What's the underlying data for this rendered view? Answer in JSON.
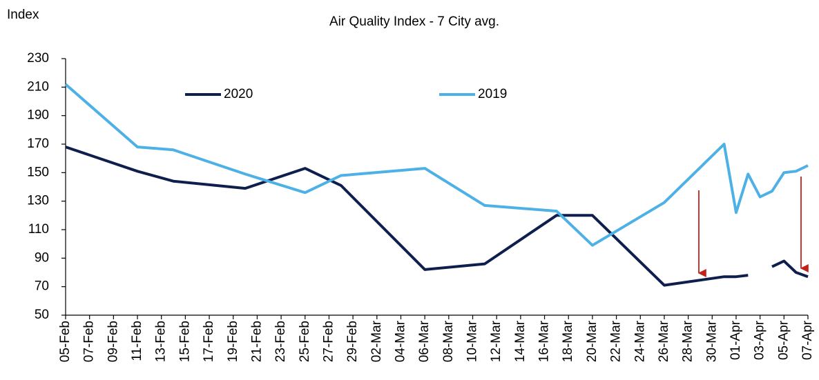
{
  "chart_data": {
    "type": "line",
    "title": "Air Quality  Index - 7 City avg.",
    "ylabel": "Index",
    "x": [
      "05-Feb",
      "11-Feb",
      "14-Feb",
      "20-Feb",
      "25-Feb",
      "28-Feb",
      "06-Mar",
      "11-Mar",
      "17-Mar",
      "20-Mar",
      "26-Mar",
      "31-Mar",
      "01-Apr",
      "02-Apr",
      "03-Apr",
      "04-Apr",
      "05-Apr",
      "06-Apr",
      "07-Apr"
    ],
    "series": [
      {
        "name": "2020",
        "color": "#0f1f4d",
        "values": [
          168,
          151,
          144,
          139,
          153,
          141,
          82,
          86,
          120,
          120,
          71,
          77,
          77,
          78,
          null,
          84,
          88,
          80,
          77
        ]
      },
      {
        "name": "2019",
        "color": "#4db1e6",
        "values": [
          212,
          168,
          166,
          149,
          136,
          148,
          153,
          127,
          123,
          99,
          129,
          170,
          122,
          149,
          133,
          137,
          150,
          151,
          155
        ]
      }
    ],
    "xlim": [
      "05-Feb",
      "07-Apr"
    ],
    "xticks": [
      "05-Feb",
      "07-Feb",
      "09-Feb",
      "11-Feb",
      "13-Feb",
      "15-Feb",
      "17-Feb",
      "19-Feb",
      "21-Feb",
      "23-Feb",
      "25-Feb",
      "27-Feb",
      "29-Feb",
      "02-Mar",
      "04-Mar",
      "06-Mar",
      "08-Mar",
      "10-Mar",
      "12-Mar",
      "14-Mar",
      "16-Mar",
      "18-Mar",
      "20-Mar",
      "22-Mar",
      "24-Mar",
      "26-Mar",
      "28-Mar",
      "30-Mar",
      "01-Apr",
      "03-Apr",
      "05-Apr",
      "07-Apr"
    ],
    "ylim": [
      50,
      230
    ],
    "yticks": [
      50,
      70,
      90,
      110,
      130,
      150,
      170,
      190,
      210,
      230
    ],
    "grid": false
  }
}
